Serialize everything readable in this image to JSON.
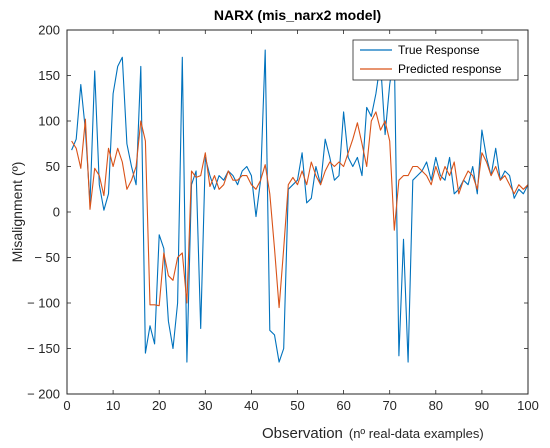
{
  "chart_data": {
    "type": "line",
    "title": "NARX (mis_narx2 model)",
    "xlabel": "Observation",
    "xlabel_note": "(nº real-data examples)",
    "ylabel": "Misalignment (º)",
    "xlim": [
      0,
      100
    ],
    "ylim": [
      -200,
      200
    ],
    "xticks": [
      0,
      10,
      20,
      30,
      40,
      50,
      60,
      70,
      80,
      90,
      100
    ],
    "yticks": [
      200,
      150,
      100,
      50,
      0,
      -50,
      -100,
      -150,
      -200
    ],
    "grid": false,
    "legend": "top-right",
    "x": [
      1,
      2,
      3,
      4,
      5,
      6,
      7,
      8,
      9,
      10,
      11,
      12,
      13,
      14,
      15,
      16,
      17,
      18,
      19,
      20,
      21,
      22,
      23,
      24,
      25,
      26,
      27,
      28,
      29,
      30,
      31,
      32,
      33,
      34,
      35,
      36,
      37,
      38,
      39,
      40,
      41,
      42,
      43,
      44,
      45,
      46,
      47,
      48,
      49,
      50,
      51,
      52,
      53,
      54,
      55,
      56,
      57,
      58,
      59,
      60,
      61,
      62,
      63,
      64,
      65,
      66,
      67,
      68,
      69,
      70,
      71,
      72,
      73,
      74,
      75,
      76,
      77,
      78,
      79,
      80,
      81,
      82,
      83,
      84,
      85,
      86,
      87,
      88,
      89,
      90,
      91,
      92,
      93,
      94,
      95,
      96,
      97,
      98,
      99,
      100
    ],
    "series": [
      {
        "name": "True Response",
        "color": "#0072BD",
        "values": [
          68,
          80,
          140,
          90,
          10,
          155,
          30,
          2,
          20,
          130,
          160,
          170,
          75,
          50,
          30,
          160,
          -155,
          -125,
          -145,
          -25,
          -40,
          -120,
          -150,
          -100,
          170,
          -165,
          30,
          45,
          -128,
          60,
          40,
          25,
          40,
          35,
          45,
          40,
          30,
          45,
          50,
          40,
          -5,
          35,
          178,
          -130,
          -135,
          -165,
          -150,
          25,
          30,
          35,
          65,
          10,
          15,
          50,
          30,
          80,
          60,
          35,
          40,
          110,
          60,
          50,
          60,
          40,
          115,
          105,
          130,
          165,
          85,
          140,
          175,
          -158,
          -30,
          -165,
          35,
          40,
          45,
          55,
          35,
          60,
          40,
          35,
          60,
          20,
          25,
          35,
          30,
          50,
          20,
          90,
          60,
          40,
          70,
          35,
          45,
          40,
          15,
          25,
          20,
          30
        ]
      },
      {
        "name": "Predicted response",
        "color": "#D95319",
        "values": [
          78,
          70,
          48,
          102,
          3,
          48,
          40,
          18,
          70,
          50,
          70,
          55,
          25,
          35,
          50,
          100,
          78,
          -102,
          -102,
          -103,
          -45,
          -70,
          -75,
          -50,
          -45,
          -100,
          45,
          38,
          40,
          65,
          28,
          40,
          25,
          30,
          45,
          35,
          35,
          40,
          40,
          30,
          25,
          35,
          52,
          20,
          -40,
          -105,
          -40,
          30,
          38,
          30,
          45,
          30,
          55,
          40,
          30,
          45,
          55,
          50,
          55,
          50,
          65,
          80,
          98,
          75,
          50,
          100,
          110,
          90,
          100,
          78,
          -20,
          35,
          40,
          40,
          50,
          50,
          45,
          40,
          30,
          50,
          35,
          50,
          40,
          55,
          20,
          35,
          45,
          40,
          25,
          65,
          55,
          40,
          50,
          35,
          40,
          30,
          20,
          30,
          25,
          30
        ]
      }
    ]
  }
}
